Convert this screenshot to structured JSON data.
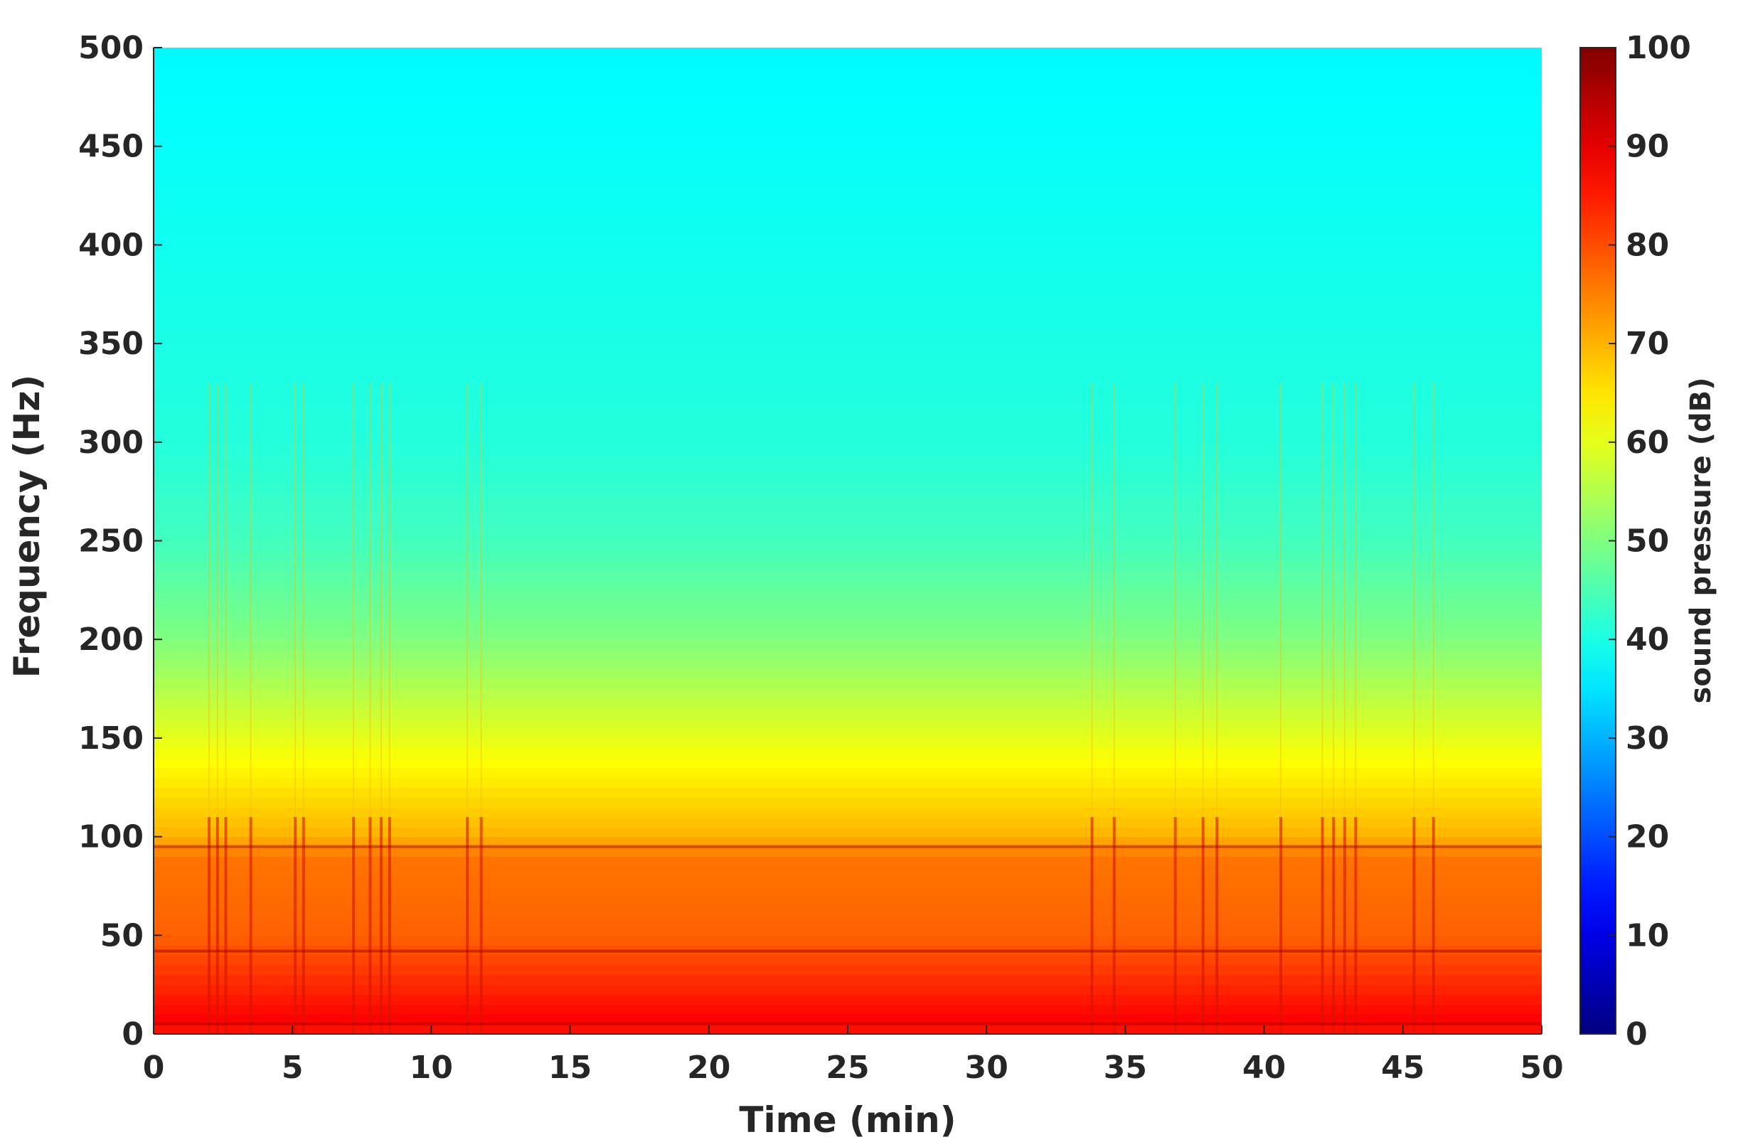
{
  "chart_data": {
    "type": "heatmap",
    "title": "",
    "xlabel": "Time (min)",
    "ylabel": "Frequency (Hz)",
    "xlim": [
      0,
      50
    ],
    "ylim": [
      0,
      500
    ],
    "x_ticks": [
      0,
      5,
      10,
      15,
      20,
      25,
      30,
      35,
      40,
      45,
      50
    ],
    "y_ticks": [
      0,
      50,
      100,
      150,
      200,
      250,
      300,
      350,
      400,
      450,
      500
    ],
    "colorbar": {
      "label": "sound pressure (dB)",
      "range": [
        0,
        100
      ],
      "ticks": [
        0,
        10,
        20,
        30,
        40,
        50,
        60,
        70,
        80,
        90,
        100
      ],
      "colormap": "jet"
    },
    "level_profile_db": [
      {
        "frequency": 0,
        "level": 84
      },
      {
        "frequency": 5,
        "level": 88
      },
      {
        "frequency": 50,
        "level": 78
      },
      {
        "frequency": 90,
        "level": 76
      },
      {
        "frequency": 100,
        "level": 70
      },
      {
        "frequency": 150,
        "level": 60
      },
      {
        "frequency": 200,
        "level": 50
      },
      {
        "frequency": 250,
        "level": 44
      },
      {
        "frequency": 300,
        "level": 41
      },
      {
        "frequency": 400,
        "level": 39
      },
      {
        "frequency": 500,
        "level": 37
      }
    ],
    "transient_events_min": [
      2.0,
      2.3,
      2.6,
      3.5,
      5.1,
      5.4,
      7.2,
      7.8,
      8.2,
      8.5,
      11.3,
      11.8,
      33.8,
      34.6,
      36.8,
      37.8,
      38.3,
      40.6,
      42.1,
      42.5,
      42.9,
      43.3,
      45.4,
      46.1
    ],
    "horizontal_bands_hz": [
      5,
      42,
      95
    ]
  },
  "colors": {
    "background": "#ffffff",
    "axis": "#262626"
  }
}
